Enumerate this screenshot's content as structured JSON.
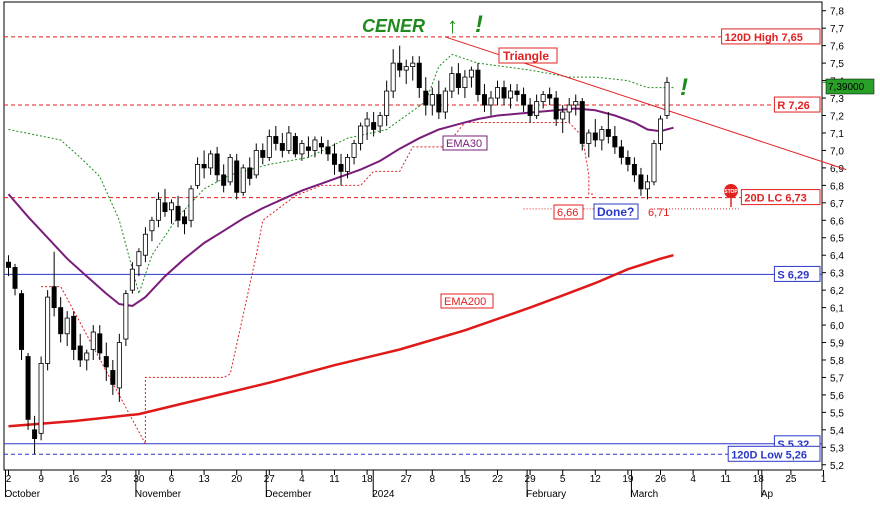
{
  "chart_data": {
    "type": "candlestick",
    "ticker": "CENER",
    "y_axis": {
      "ticks": [
        "7,8",
        "7,7",
        "7,6",
        "7,5",
        "7,4",
        "7,3",
        "7,2",
        "7,1",
        "7,0",
        "6,9",
        "6,8",
        "6,7",
        "6,6",
        "6,5",
        "6,4",
        "6,3",
        "6,2",
        "6,1",
        "6,0",
        "5,9",
        "5,8",
        "5,7",
        "5,6",
        "5,5",
        "5,4",
        "5,3",
        "5,2"
      ],
      "tick_values": [
        7.8,
        7.7,
        7.6,
        7.5,
        7.4,
        7.3,
        7.2,
        7.1,
        7.0,
        6.9,
        6.8,
        6.7,
        6.6,
        6.5,
        6.4,
        6.3,
        6.2,
        6.1,
        6.0,
        5.9,
        5.8,
        5.7,
        5.6,
        5.5,
        5.4,
        5.3,
        5.2
      ],
      "range": [
        5.17,
        7.85
      ],
      "current_value": 7.39,
      "current_label": "7,39000"
    },
    "x_axis": {
      "day_ticks": [
        "2",
        "9",
        "16",
        "23",
        "30",
        "6",
        "13",
        "20",
        "27",
        "4",
        "11",
        "18",
        "27",
        "8",
        "15",
        "22",
        "29",
        "5",
        "12",
        "19",
        "26",
        "4",
        "11",
        "18",
        "25",
        "1"
      ],
      "day_tick_index": [
        0,
        5,
        10,
        15,
        20,
        25,
        30,
        35,
        40,
        45,
        50,
        55,
        61,
        65,
        70,
        75,
        80,
        85,
        90,
        95,
        100,
        105,
        110,
        115,
        120,
        125
      ],
      "month_labels": [
        "October",
        "November",
        "December",
        "2024",
        "February",
        "March",
        "Ap"
      ],
      "month_index": [
        0,
        20,
        40,
        56.4,
        80,
        96,
        116
      ]
    },
    "candles": [
      [
        6.36,
        6.4,
        6.28,
        6.33
      ],
      [
        6.33,
        6.35,
        6.17,
        6.21
      ],
      [
        6.18,
        6.2,
        5.8,
        5.86
      ],
      [
        5.82,
        5.84,
        5.4,
        5.46
      ],
      [
        5.4,
        5.48,
        5.26,
        5.35
      ],
      [
        5.38,
        5.82,
        5.34,
        5.78
      ],
      [
        5.78,
        6.2,
        5.74,
        6.16
      ],
      [
        6.22,
        6.42,
        6.05,
        6.1
      ],
      [
        6.1,
        6.16,
        5.9,
        5.95
      ],
      [
        5.95,
        6.08,
        5.88,
        6.04
      ],
      [
        6.05,
        6.08,
        5.8,
        5.86
      ],
      [
        5.88,
        5.95,
        5.76,
        5.8
      ],
      [
        5.8,
        5.86,
        5.74,
        5.84
      ],
      [
        5.86,
        6.0,
        5.8,
        5.96
      ],
      [
        5.95,
        6.0,
        5.8,
        5.84
      ],
      [
        5.82,
        5.9,
        5.68,
        5.76
      ],
      [
        5.74,
        5.8,
        5.6,
        5.66
      ],
      [
        5.64,
        5.95,
        5.56,
        5.9
      ],
      [
        5.92,
        6.2,
        5.88,
        6.18
      ],
      [
        6.2,
        6.36,
        6.18,
        6.32
      ],
      [
        6.34,
        6.44,
        6.28,
        6.42
      ],
      [
        6.4,
        6.56,
        6.36,
        6.52
      ],
      [
        6.54,
        6.62,
        6.48,
        6.6
      ],
      [
        6.6,
        6.76,
        6.56,
        6.72
      ],
      [
        6.7,
        6.78,
        6.62,
        6.65
      ],
      [
        6.66,
        6.72,
        6.58,
        6.7
      ],
      [
        6.68,
        6.74,
        6.56,
        6.6
      ],
      [
        6.62,
        6.66,
        6.52,
        6.58
      ],
      [
        6.6,
        6.8,
        6.56,
        6.78
      ],
      [
        6.8,
        6.96,
        6.78,
        6.92
      ],
      [
        6.92,
        7.0,
        6.84,
        6.9
      ],
      [
        6.9,
        7.0,
        6.86,
        6.98
      ],
      [
        6.98,
        7.02,
        6.82,
        6.86
      ],
      [
        6.86,
        6.92,
        6.76,
        6.8
      ],
      [
        6.82,
        6.98,
        6.8,
        6.96
      ],
      [
        6.94,
        6.98,
        6.72,
        6.76
      ],
      [
        6.76,
        6.92,
        6.74,
        6.9
      ],
      [
        6.9,
        6.96,
        6.8,
        6.84
      ],
      [
        6.86,
        7.04,
        6.84,
        7.0
      ],
      [
        7.0,
        7.04,
        6.92,
        6.96
      ],
      [
        6.96,
        7.12,
        6.94,
        7.08
      ],
      [
        7.08,
        7.14,
        7.0,
        7.04
      ],
      [
        7.04,
        7.1,
        6.96,
        7.0
      ],
      [
        7.0,
        7.14,
        6.98,
        7.1
      ],
      [
        7.08,
        7.1,
        6.96,
        6.98
      ],
      [
        6.98,
        7.06,
        6.94,
        7.04
      ],
      [
        7.02,
        7.08,
        6.96,
        7.0
      ],
      [
        7.0,
        7.08,
        6.96,
        7.06
      ],
      [
        7.04,
        7.08,
        6.98,
        7.02
      ],
      [
        7.02,
        7.06,
        6.94,
        6.98
      ],
      [
        6.98,
        7.04,
        6.86,
        6.92
      ],
      [
        6.92,
        6.98,
        6.8,
        6.88
      ],
      [
        6.88,
        6.98,
        6.84,
        6.96
      ],
      [
        6.96,
        7.06,
        6.92,
        7.04
      ],
      [
        7.04,
        7.16,
        7.0,
        7.14
      ],
      [
        7.14,
        7.22,
        7.06,
        7.18
      ],
      [
        7.16,
        7.22,
        7.08,
        7.12
      ],
      [
        7.14,
        7.22,
        7.1,
        7.2
      ],
      [
        7.2,
        7.4,
        7.14,
        7.34
      ],
      [
        7.34,
        7.58,
        7.3,
        7.5
      ],
      [
        7.5,
        7.6,
        7.42,
        7.46
      ],
      [
        7.46,
        7.52,
        7.38,
        7.48
      ],
      [
        7.48,
        7.54,
        7.4,
        7.5
      ],
      [
        7.5,
        7.54,
        7.3,
        7.36
      ],
      [
        7.34,
        7.42,
        7.2,
        7.26
      ],
      [
        7.26,
        7.36,
        7.2,
        7.32
      ],
      [
        7.32,
        7.4,
        7.18,
        7.22
      ],
      [
        7.22,
        7.36,
        7.18,
        7.34
      ],
      [
        7.34,
        7.48,
        7.3,
        7.44
      ],
      [
        7.44,
        7.5,
        7.32,
        7.36
      ],
      [
        7.36,
        7.46,
        7.3,
        7.42
      ],
      [
        7.42,
        7.48,
        7.36,
        7.46
      ],
      [
        7.46,
        7.5,
        7.28,
        7.32
      ],
      [
        7.32,
        7.38,
        7.22,
        7.26
      ],
      [
        7.26,
        7.34,
        7.2,
        7.3
      ],
      [
        7.3,
        7.4,
        7.26,
        7.36
      ],
      [
        7.36,
        7.4,
        7.26,
        7.3
      ],
      [
        7.3,
        7.38,
        7.24,
        7.34
      ],
      [
        7.34,
        7.38,
        7.28,
        7.32
      ],
      [
        7.32,
        7.36,
        7.22,
        7.26
      ],
      [
        7.26,
        7.3,
        7.16,
        7.2
      ],
      [
        7.2,
        7.32,
        7.18,
        7.28
      ],
      [
        7.28,
        7.34,
        7.24,
        7.32
      ],
      [
        7.32,
        7.36,
        7.26,
        7.3
      ],
      [
        7.3,
        7.34,
        7.14,
        7.18
      ],
      [
        7.18,
        7.26,
        7.1,
        7.22
      ],
      [
        7.22,
        7.3,
        7.16,
        7.26
      ],
      [
        7.26,
        7.32,
        7.2,
        7.28
      ],
      [
        7.28,
        7.3,
        7.0,
        7.04
      ],
      [
        7.04,
        7.12,
        6.96,
        7.1
      ],
      [
        7.1,
        7.18,
        7.02,
        7.06
      ],
      [
        7.06,
        7.14,
        7.0,
        7.12
      ],
      [
        7.12,
        7.22,
        7.04,
        7.08
      ],
      [
        7.08,
        7.14,
        6.98,
        7.02
      ],
      [
        7.02,
        7.06,
        6.92,
        6.96
      ],
      [
        6.96,
        7.0,
        6.88,
        6.92
      ],
      [
        6.92,
        6.96,
        6.82,
        6.86
      ],
      [
        6.86,
        6.9,
        6.74,
        6.78
      ],
      [
        6.78,
        6.86,
        6.72,
        6.82
      ],
      [
        6.82,
        7.06,
        6.8,
        7.04
      ],
      [
        7.04,
        7.2,
        7.0,
        7.18
      ],
      [
        7.2,
        7.42,
        7.18,
        7.39
      ]
    ],
    "horizontal_levels": [
      {
        "label": "120D High 7,65",
        "value": 7.65,
        "style": "dashed",
        "color": "#e32020"
      },
      {
        "label": "R 7,26",
        "value": 7.26,
        "style": "dashed",
        "color": "#e32020"
      },
      {
        "label": "20D LC 6,73",
        "value": 6.73,
        "style": "dashed",
        "color": "#e32020"
      },
      {
        "label": "S 6,29",
        "value": 6.29,
        "style": "solid",
        "color": "#2a38c8"
      },
      {
        "label": "S 5,32",
        "value": 5.32,
        "style": "solid",
        "color": "#2a38c8"
      },
      {
        "label": "120D Low 5,26",
        "value": 5.26,
        "style": "dashed",
        "color": "#2a38c8"
      }
    ],
    "ema30": [
      [
        0,
        6.75
      ],
      [
        3,
        6.62
      ],
      [
        6,
        6.5
      ],
      [
        9,
        6.38
      ],
      [
        12,
        6.28
      ],
      [
        15,
        6.18
      ],
      [
        17,
        6.12
      ],
      [
        19,
        6.11
      ],
      [
        21,
        6.16
      ],
      [
        24,
        6.28
      ],
      [
        27,
        6.38
      ],
      [
        30,
        6.47
      ],
      [
        33,
        6.54
      ],
      [
        36,
        6.61
      ],
      [
        39,
        6.67
      ],
      [
        42,
        6.72
      ],
      [
        45,
        6.77
      ],
      [
        48,
        6.81
      ],
      [
        51,
        6.85
      ],
      [
        54,
        6.89
      ],
      [
        57,
        6.94
      ],
      [
        60,
        7.01
      ],
      [
        63,
        7.07
      ],
      [
        66,
        7.12
      ],
      [
        69,
        7.15
      ],
      [
        72,
        7.18
      ],
      [
        75,
        7.2
      ],
      [
        78,
        7.21
      ],
      [
        81,
        7.22
      ],
      [
        84,
        7.23
      ],
      [
        87,
        7.24
      ],
      [
        90,
        7.23
      ],
      [
        93,
        7.2
      ],
      [
        96,
        7.16
      ],
      [
        98,
        7.12
      ],
      [
        100,
        7.11
      ],
      [
        102,
        7.13
      ]
    ],
    "ema200": [
      [
        0,
        5.42
      ],
      [
        10,
        5.45
      ],
      [
        20,
        5.49
      ],
      [
        30,
        5.58
      ],
      [
        40,
        5.67
      ],
      [
        50,
        5.77
      ],
      [
        60,
        5.86
      ],
      [
        70,
        5.97
      ],
      [
        80,
        6.1
      ],
      [
        85,
        6.17
      ],
      [
        90,
        6.24
      ],
      [
        95,
        6.32
      ],
      [
        100,
        6.38
      ],
      [
        102,
        6.4
      ]
    ],
    "trendline_triangle": {
      "from": [
        67,
        7.65
      ],
      "to": [
        128.5,
        6.89
      ]
    },
    "stop_line_red": [
      [
        5,
        6.22
      ],
      [
        8,
        6.22
      ],
      [
        8,
        6.22
      ],
      [
        21,
        5.32
      ],
      [
        21,
        5.7
      ],
      [
        33,
        5.7
      ],
      [
        34,
        5.72
      ],
      [
        38,
        6.4
      ],
      [
        39,
        6.6
      ],
      [
        44,
        6.74
      ],
      [
        48,
        6.8
      ],
      [
        54,
        6.8
      ],
      [
        56,
        6.88
      ],
      [
        60,
        6.88
      ],
      [
        62,
        7.02
      ],
      [
        67,
        7.02
      ],
      [
        70,
        7.16
      ],
      [
        80,
        7.16
      ],
      [
        86,
        7.16
      ],
      [
        88,
        7.08
      ],
      [
        89,
        6.86
      ],
      [
        89,
        6.75
      ],
      [
        90,
        6.75
      ]
    ],
    "stop_line_green": [
      [
        0,
        7.12
      ],
      [
        4,
        7.09
      ],
      [
        8,
        7.06
      ],
      [
        11,
        6.96
      ],
      [
        14,
        6.85
      ],
      [
        17,
        6.6
      ],
      [
        19,
        6.32
      ],
      [
        20,
        6.18
      ],
      [
        22,
        6.4
      ],
      [
        26,
        6.62
      ],
      [
        30,
        6.78
      ],
      [
        34,
        6.86
      ],
      [
        40,
        6.92
      ],
      [
        46,
        6.96
      ],
      [
        52,
        7.07
      ],
      [
        58,
        7.12
      ],
      [
        64,
        7.28
      ],
      [
        66,
        7.48
      ],
      [
        68,
        7.55
      ],
      [
        72,
        7.5
      ],
      [
        80,
        7.46
      ],
      [
        86,
        7.42
      ],
      [
        90,
        7.42
      ],
      [
        95,
        7.4
      ],
      [
        98,
        7.36
      ],
      [
        102,
        7.36
      ]
    ],
    "annotations": {
      "title": "CENER",
      "title_arrow": "↑",
      "title_exclaim": "!",
      "triangle_label": "Triangle",
      "ema30_label": "EMA30",
      "ema200_label": "EMA200",
      "label_666": "6,66",
      "label_done": "Done?",
      "label_671": "6,71",
      "stop_sign": "STOP",
      "right_exclaim": "!"
    }
  }
}
